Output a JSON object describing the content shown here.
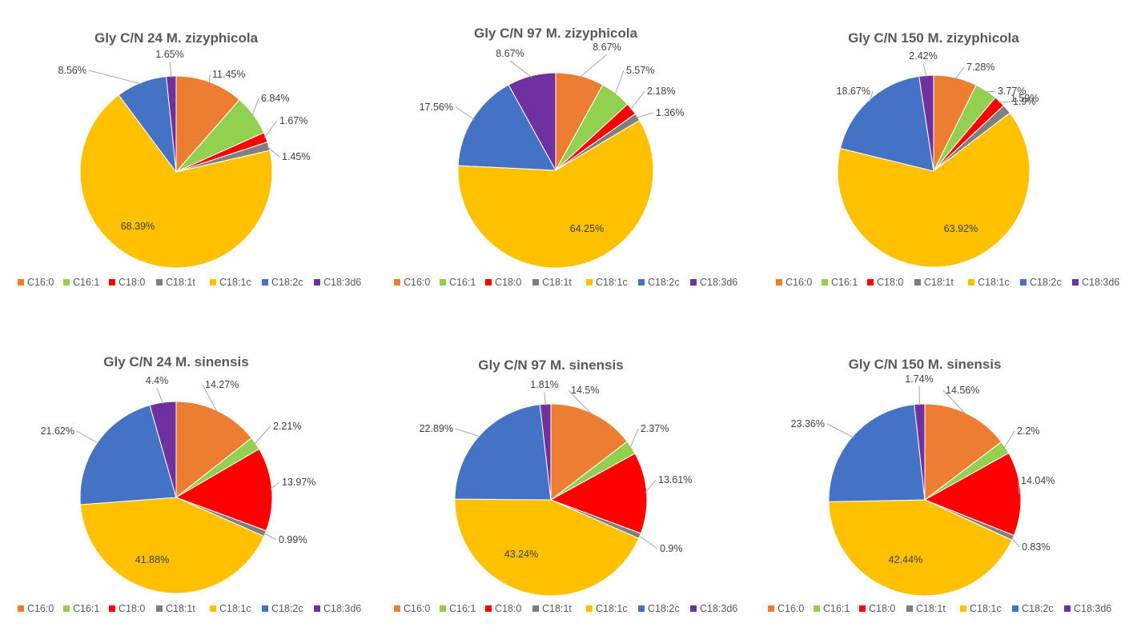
{
  "chart_data": [
    {
      "type": "pie",
      "title": "Gly C/N 24 M. zizyphicola",
      "categories": [
        "C16:0",
        "C16:1",
        "C18:0",
        "C18:1t",
        "C18:1c",
        "C18:2c",
        "C18:3d6"
      ],
      "values": [
        11.45,
        6.84,
        1.67,
        1.45,
        68.39,
        8.56,
        1.65
      ],
      "data_labels": [
        "11.45%",
        "6.84%",
        "1.67%",
        "1.45%",
        "68.39%",
        "8.56%",
        "1.65%"
      ],
      "legend_position": "bottom"
    },
    {
      "type": "pie",
      "title": "Gly C/N 97 M. zizyphicola",
      "categories": [
        "C16:0",
        "C16:1",
        "C18:0",
        "C18:1t",
        "C18:1c",
        "C18:2c",
        "C18:3d6"
      ],
      "values": [
        8.67,
        5.57,
        2.18,
        1.36,
        64.25,
        17.56,
        8.67
      ],
      "data_labels": [
        "8.67%",
        "5.57%",
        "2.18%",
        "1.36%",
        "64.25%",
        "17.56%",
        "8.67%"
      ],
      "legend_position": "bottom"
    },
    {
      "type": "pie",
      "title": "Gly C/N 150 M. zizyphicola",
      "categories": [
        "C16:0",
        "C16:1",
        "C18:0",
        "C18:1t",
        "C18:1c",
        "C18:2c",
        "C18:3d6"
      ],
      "values": [
        7.28,
        3.77,
        1.9,
        1.59,
        63.92,
        18.67,
        2.42
      ],
      "data_labels": [
        "7.28%",
        "3.77%",
        "1.9%",
        "1.59%",
        "63.92%",
        "18.67%",
        "2.42%"
      ],
      "legend_position": "bottom"
    },
    {
      "type": "pie",
      "title": "Gly C/N 24 M. sinensis",
      "categories": [
        "C16:0",
        "C16:1",
        "C18:0",
        "C18:1t",
        "C18:1c",
        "C18:2c",
        "C18:3d6"
      ],
      "values": [
        14.27,
        2.21,
        13.97,
        0.99,
        41.88,
        21.62,
        4.4
      ],
      "data_labels": [
        "14.27%",
        "2.21%",
        "13.97%",
        "0.99%",
        "41.88%",
        "21.62%",
        "4.4%"
      ],
      "legend_position": "bottom"
    },
    {
      "type": "pie",
      "title": "Gly C/N 97 M. sinensis",
      "categories": [
        "C16:0",
        "C16:1",
        "C18:0",
        "C18:1t",
        "C18:1c",
        "C18:2c",
        "C18:3d6"
      ],
      "values": [
        14.5,
        2.37,
        13.61,
        0.9,
        43.24,
        22.89,
        1.81
      ],
      "data_labels": [
        "14.5%",
        "2.37%",
        "13.61%",
        "0.9%",
        "43.24%",
        "22.89%",
        "1.81%"
      ],
      "legend_position": "bottom"
    },
    {
      "type": "pie",
      "title": "Gly C/N 150 M. sinensis",
      "categories": [
        "C16:0",
        "C16:1",
        "C18:0",
        "C18:1t",
        "C18:1c",
        "C18:2c",
        "C18:3d6"
      ],
      "values": [
        14.56,
        2.2,
        14.04,
        0.83,
        42.44,
        23.36,
        1.74
      ],
      "data_labels": [
        "14.56%",
        "2.2%",
        "14.04%",
        "0.83%",
        "42.44%",
        "23.36%",
        "1.74%"
      ],
      "legend_position": "bottom"
    }
  ],
  "series_colors": [
    "#ED7D31",
    "#92D050",
    "#FF0000",
    "#7F7F7F",
    "#FFC000",
    "#4472C4",
    "#7030A0"
  ]
}
